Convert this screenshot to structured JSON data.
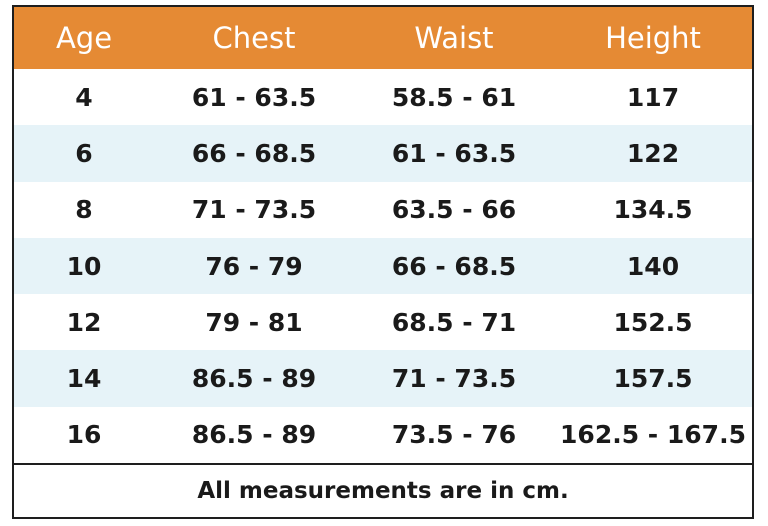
{
  "table": {
    "headers": {
      "age": "Age",
      "chest": "Chest",
      "waist": "Waist",
      "height": "Height"
    },
    "rows": [
      {
        "age": "4",
        "chest": "61 - 63.5",
        "waist": "58.5 - 61",
        "height": "117"
      },
      {
        "age": "6",
        "chest": "66 - 68.5",
        "waist": "61 - 63.5",
        "height": "122"
      },
      {
        "age": "8",
        "chest": "71 - 73.5",
        "waist": "63.5 - 66",
        "height": "134.5"
      },
      {
        "age": "10",
        "chest": "76 - 79",
        "waist": "66 - 68.5",
        "height": "140"
      },
      {
        "age": "12",
        "chest": "79 - 81",
        "waist": "68.5 - 71",
        "height": "152.5"
      },
      {
        "age": "14",
        "chest": "86.5 - 89",
        "waist": "71 - 73.5",
        "height": "157.5"
      },
      {
        "age": "16",
        "chest": "86.5 - 89",
        "waist": "73.5 - 76",
        "height": "162.5 - 167.5"
      }
    ],
    "footer": "All measurements are in cm."
  },
  "colors": {
    "header_background": "#e58a34",
    "header_text": "#ffffff",
    "shaded_row": "#e6f3f8",
    "border": "#1e1e1e",
    "text": "#1a1a1a"
  }
}
